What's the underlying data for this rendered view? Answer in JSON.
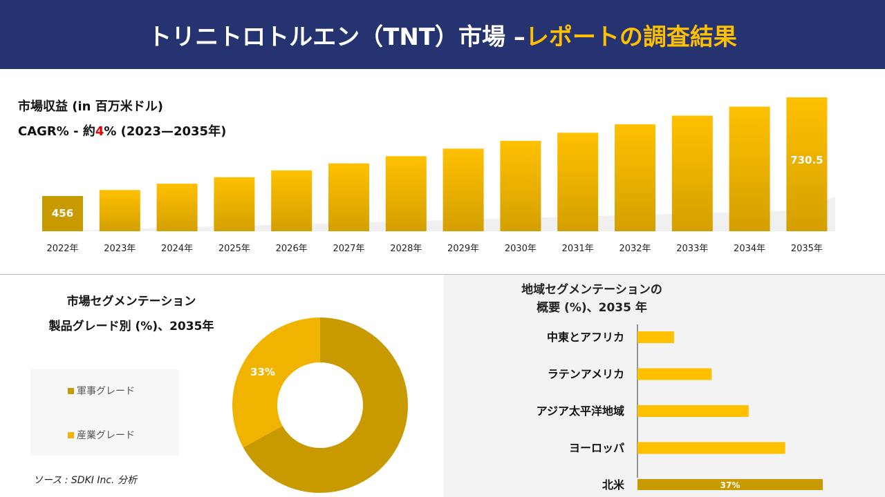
{
  "header": {
    "title_main": "トリニトロトルエン（TNT）市場 –",
    "title_highlight": "レポートの調査結果"
  },
  "revenue": {
    "label": "市場収益 (in 百万米ドル)",
    "cagr_prefix": "CAGR% - 約",
    "cagr_value": "4",
    "cagr_suffix": "% (2023—2035年)"
  },
  "colors": {
    "header_bg": "#253370",
    "highlight": "#ffc000",
    "bar_dark": "#c89a00",
    "bar_light": "#ffc000",
    "military": "#c89a00",
    "industrial": "#f0b400"
  },
  "chart_data": [
    {
      "type": "bar",
      "categories": [
        "2022年",
        "2023年",
        "2024年",
        "2025年",
        "2026年",
        "2027年",
        "2028年",
        "2029年",
        "2030年",
        "2031年",
        "2032年",
        "2033年",
        "2034年",
        "2035年"
      ],
      "values": [
        456,
        472.8,
        490.3,
        508.4,
        527.2,
        546.7,
        566.9,
        587.8,
        609.5,
        632.0,
        655.4,
        679.6,
        704.7,
        730.5
      ],
      "data_labels": {
        "0": "456",
        "13": "730.5"
      },
      "ylabel": "",
      "grid": false
    },
    {
      "type": "pie",
      "title": [
        "市場セグメンテーション",
        "製品グレード別 (%)、2035年"
      ],
      "labels": [
        "軍事グレード",
        "産業グレード"
      ],
      "values": [
        67,
        33
      ],
      "data_labels": {
        "1": "33%"
      },
      "legend": "left"
    },
    {
      "type": "bar",
      "orientation": "horizontal",
      "title": [
        "地域セグメンテーションの",
        "概要 (%)、2035 年"
      ],
      "categories": [
        "中東とアフリカ",
        "ラテンアメリカ",
        "アジア太平洋地域",
        "ヨーロッパ",
        "北米"
      ],
      "values": [
        7.3,
        14.8,
        22.2,
        29.5,
        37
      ],
      "data_labels": {
        "4": "37%"
      }
    }
  ],
  "source": "ソース : SDKI Inc. 分析"
}
